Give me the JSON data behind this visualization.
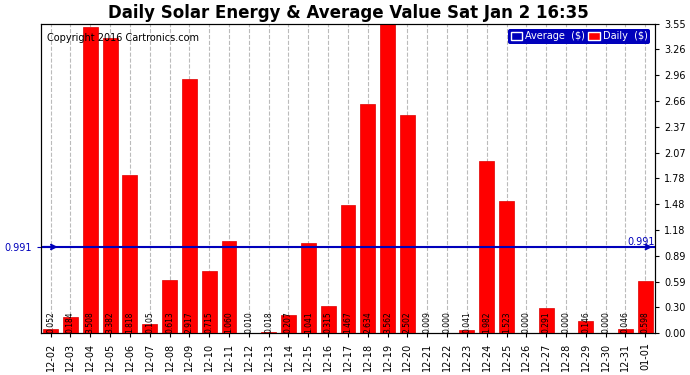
{
  "title": "Daily Solar Energy & Average Value Sat Jan 2 16:35",
  "copyright": "Copyright 2016 Cartronics.com",
  "categories": [
    "12-02",
    "12-03",
    "12-04",
    "12-05",
    "12-06",
    "12-07",
    "12-08",
    "12-09",
    "12-10",
    "12-11",
    "12-12",
    "12-13",
    "12-14",
    "12-15",
    "12-16",
    "12-17",
    "12-18",
    "12-19",
    "12-20",
    "12-21",
    "12-22",
    "12-23",
    "12-24",
    "12-25",
    "12-26",
    "12-27",
    "12-28",
    "12-29",
    "12-30",
    "12-31",
    "01-01"
  ],
  "values": [
    0.052,
    0.184,
    3.508,
    3.382,
    1.818,
    0.105,
    0.613,
    2.917,
    0.715,
    1.06,
    0.01,
    0.018,
    0.207,
    1.041,
    0.315,
    1.467,
    2.634,
    3.562,
    2.502,
    0.009,
    0.0,
    0.041,
    1.982,
    1.523,
    0.0,
    0.291,
    0.0,
    0.146,
    0.0,
    0.046,
    0.598
  ],
  "average": 0.991,
  "bar_color": "#ff0000",
  "bar_edge_color": "#dd0000",
  "average_line_color": "#0000bb",
  "background_color": "#ffffff",
  "plot_bg_color": "#ffffff",
  "grid_color": "#aaaaaa",
  "ylim": [
    0.0,
    3.55
  ],
  "yticks": [
    0.0,
    0.3,
    0.59,
    0.89,
    1.18,
    1.48,
    1.78,
    2.07,
    2.37,
    2.66,
    2.96,
    3.26,
    3.55
  ],
  "title_fontsize": 12,
  "copyright_fontsize": 7,
  "tick_fontsize": 7,
  "bar_label_fontsize": 5.5,
  "legend_avg_bg": "#0000bb",
  "legend_daily_bg": "#ff0000",
  "legend_avg_label": "Average  ($)",
  "legend_daily_label": "Daily  ($)"
}
